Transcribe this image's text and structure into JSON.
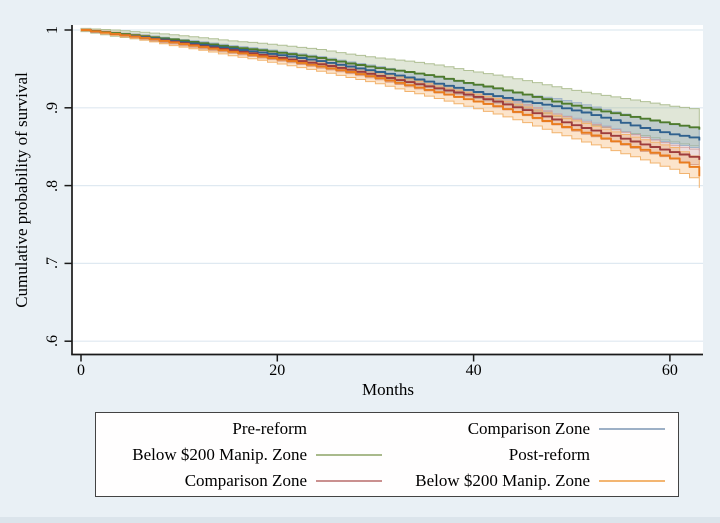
{
  "figure": {
    "background": "#e9f0f5",
    "plot_background": "#ffffff",
    "grid_color": "#dfe9f1",
    "axis_color": "#1a1a1a"
  },
  "y_axis": {
    "title": "Cumulative probability of survival",
    "ticks": [
      "1",
      ".9",
      ".8",
      ".7",
      ".6"
    ],
    "tick_values": [
      1.0,
      0.9,
      0.8,
      0.7,
      0.6
    ]
  },
  "x_axis": {
    "title": "Months",
    "ticks": [
      "0",
      "20",
      "40",
      "60"
    ],
    "tick_values": [
      0,
      20,
      40,
      60
    ]
  },
  "legend": {
    "rows": [
      {
        "left": {
          "label": "Pre-reform",
          "swatch": null
        },
        "right": {
          "label": "Comparison Zone",
          "swatch": "#9db0c6"
        }
      },
      {
        "left": {
          "label": "Below $200 Manip. Zone",
          "swatch": "#a9ba8c"
        },
        "right": {
          "label": "Post-reform",
          "swatch": null
        }
      },
      {
        "left": {
          "label": "Comparison Zone",
          "swatch": "#ca908f"
        },
        "right": {
          "label": "Below $200 Manip. Zone",
          "swatch": "#f3b571"
        }
      }
    ]
  },
  "chart_data": {
    "type": "line",
    "subtype": "kaplan-meier-step-with-ci",
    "title": "",
    "xlabel": "Months",
    "ylabel": "Cumulative probability of survival",
    "xlim": [
      0,
      63
    ],
    "ylim": [
      0.6,
      1.0
    ],
    "grid": true,
    "legend_position": "bottom",
    "x": [
      0,
      3,
      6,
      9,
      12,
      15,
      18,
      21,
      24,
      27,
      30,
      33,
      36,
      39,
      42,
      45,
      48,
      51,
      54,
      57,
      60,
      62,
      63
    ],
    "series": [
      {
        "id": "pre_below200",
        "name": "Pre-reform Below $200 Manip. Zone",
        "color": "#4e7b2d",
        "band_fill": "rgba(142,165,110,0.28)",
        "band_edge": "#b0c095",
        "values": [
          1.0,
          0.996,
          0.992,
          0.988,
          0.983,
          0.978,
          0.974,
          0.969,
          0.964,
          0.957,
          0.951,
          0.946,
          0.94,
          0.932,
          0.925,
          0.917,
          0.908,
          0.9,
          0.893,
          0.886,
          0.879,
          0.875,
          0.872
        ],
        "ci_halfwidth": [
          0.002,
          0.004,
          0.005,
          0.006,
          0.007,
          0.008,
          0.009,
          0.01,
          0.011,
          0.012,
          0.013,
          0.014,
          0.015,
          0.016,
          0.017,
          0.018,
          0.019,
          0.02,
          0.021,
          0.022,
          0.023,
          0.024,
          0.025
        ]
      },
      {
        "id": "pre_comparison",
        "name": "Pre-reform Comparison Zone",
        "color": "#2f618e",
        "band_fill": "rgba(120,146,176,0.30)",
        "band_edge": "#a2b5ca",
        "values": [
          1.0,
          0.995,
          0.991,
          0.986,
          0.981,
          0.976,
          0.971,
          0.966,
          0.96,
          0.953,
          0.946,
          0.939,
          0.931,
          0.923,
          0.915,
          0.908,
          0.902,
          0.894,
          0.884,
          0.874,
          0.866,
          0.862,
          0.858
        ],
        "ci_halfwidth": [
          0.001,
          0.002,
          0.003,
          0.003,
          0.004,
          0.004,
          0.005,
          0.005,
          0.006,
          0.006,
          0.007,
          0.007,
          0.008,
          0.008,
          0.009,
          0.009,
          0.01,
          0.01,
          0.011,
          0.012,
          0.012,
          0.013,
          0.013
        ]
      },
      {
        "id": "post_comparison",
        "name": "Post-reform Comparison Zone",
        "color": "#9e3c3c",
        "band_fill": "rgba(196,138,138,0.30)",
        "band_edge": "#cf9d9d",
        "values": [
          1.0,
          0.995,
          0.99,
          0.985,
          0.979,
          0.974,
          0.968,
          0.962,
          0.956,
          0.949,
          0.941,
          0.933,
          0.925,
          0.917,
          0.908,
          0.897,
          0.885,
          0.874,
          0.864,
          0.853,
          0.843,
          0.837,
          0.833
        ],
        "ci_halfwidth": [
          0.001,
          0.002,
          0.002,
          0.003,
          0.003,
          0.004,
          0.004,
          0.004,
          0.005,
          0.005,
          0.005,
          0.006,
          0.006,
          0.006,
          0.007,
          0.007,
          0.007,
          0.008,
          0.008,
          0.009,
          0.009,
          0.01,
          0.01
        ]
      },
      {
        "id": "post_below200",
        "name": "Post-reform Below $200 Manip. Zone",
        "color": "#e97c1e",
        "band_fill": "rgba(244,166,83,0.30)",
        "band_edge": "#f2b36e",
        "values": [
          1.0,
          0.995,
          0.99,
          0.984,
          0.978,
          0.972,
          0.966,
          0.96,
          0.953,
          0.946,
          0.938,
          0.929,
          0.92,
          0.911,
          0.902,
          0.891,
          0.879,
          0.868,
          0.857,
          0.846,
          0.835,
          0.824,
          0.812
        ],
        "ci_halfwidth": [
          0.001,
          0.002,
          0.003,
          0.004,
          0.004,
          0.005,
          0.005,
          0.006,
          0.006,
          0.007,
          0.007,
          0.008,
          0.008,
          0.009,
          0.01,
          0.01,
          0.011,
          0.012,
          0.012,
          0.013,
          0.014,
          0.014,
          0.015
        ]
      }
    ]
  }
}
